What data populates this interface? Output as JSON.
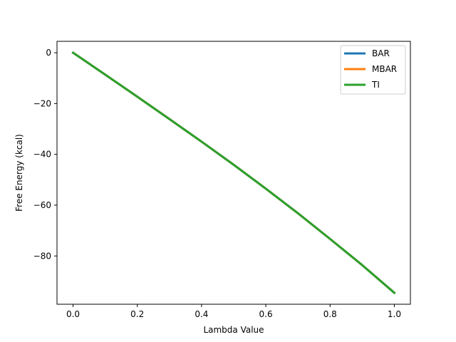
{
  "chart_data": {
    "type": "line",
    "title": "",
    "xlabel": "Lambda Value",
    "ylabel": "Free Energy (kcal)",
    "xlim": [
      -0.05,
      1.05
    ],
    "ylim": [
      -99,
      4.5
    ],
    "xticks": [
      0.0,
      0.2,
      0.4,
      0.6,
      0.8,
      1.0
    ],
    "xtick_labels": [
      "0.0",
      "0.2",
      "0.4",
      "0.6",
      "0.8",
      "1.0"
    ],
    "yticks": [
      0,
      -20,
      -40,
      -60,
      -80
    ],
    "ytick_labels": [
      "0",
      "−20",
      "−40",
      "−60",
      "−80"
    ],
    "grid": false,
    "legend_position": "top-right",
    "x": [
      0.0,
      0.1,
      0.2,
      0.3,
      0.4,
      0.5,
      0.6,
      0.7,
      0.8,
      0.9,
      1.0
    ],
    "series": [
      {
        "name": "BAR",
        "color": "#1f77b4",
        "values": [
          0,
          -8.6,
          -17.3,
          -26.1,
          -35.0,
          -44.1,
          -53.5,
          -63.2,
          -73.3,
          -83.6,
          -94.5
        ]
      },
      {
        "name": "MBAR",
        "color": "#ff7f0e",
        "values": [
          0,
          -8.6,
          -17.3,
          -26.1,
          -35.0,
          -44.1,
          -53.5,
          -63.2,
          -73.3,
          -83.6,
          -94.5
        ]
      },
      {
        "name": "TI",
        "color": "#2ca02c",
        "values": [
          0,
          -8.6,
          -17.3,
          -26.1,
          -35.0,
          -44.1,
          -53.5,
          -63.2,
          -73.3,
          -83.6,
          -94.5
        ]
      }
    ]
  }
}
